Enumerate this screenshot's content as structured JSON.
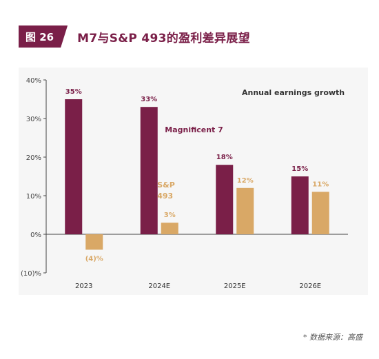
{
  "figure": {
    "tag": "图 26",
    "title": "M7与S&P 493的盈利差异展望",
    "source": "* 数据来源：高盛"
  },
  "colors": {
    "magnificent7": "#7a1f48",
    "sp493": "#d9a866",
    "header_bg": "#7a1f48",
    "panel_bg": "#f6f6f6"
  },
  "chart_data": {
    "type": "bar",
    "title": "Annual earnings growth",
    "categories": [
      "2023",
      "2024E",
      "2025E",
      "2026E"
    ],
    "series": [
      {
        "name": "Magnificent 7",
        "values": [
          35,
          33,
          18,
          15
        ],
        "labels": [
          "35%",
          "33%",
          "18%",
          "15%"
        ]
      },
      {
        "name": "S&P 493",
        "values": [
          -4,
          3,
          12,
          11
        ],
        "labels": [
          "(4)%",
          "3%",
          "12%",
          "11%"
        ]
      }
    ],
    "series_name_lines": [
      [
        "Magnificent 7"
      ],
      [
        "S&P",
        "493"
      ]
    ],
    "ylim": [
      -10,
      40
    ],
    "yticks": [
      40,
      30,
      20,
      10,
      0,
      -10
    ],
    "ytick_labels": [
      "40%",
      "30%",
      "20%",
      "10%",
      "0%",
      "(10)%"
    ],
    "xlabel": "",
    "ylabel": "",
    "grid": false,
    "legend": "inline labels"
  }
}
